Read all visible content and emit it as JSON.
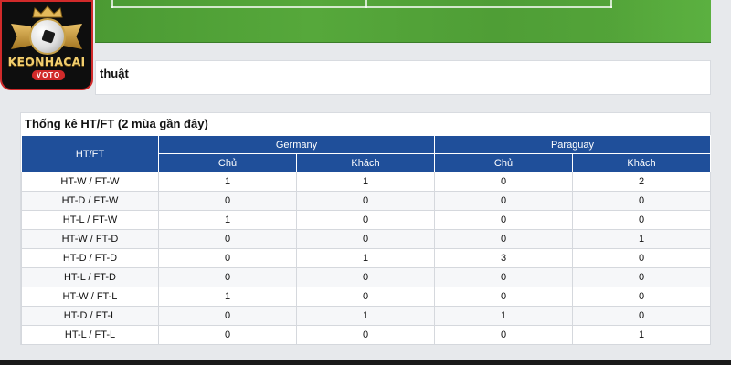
{
  "logo": {
    "name": "KEONHACAI",
    "sub": "VOTO"
  },
  "section_tech": {
    "title": "thuật"
  },
  "htft": {
    "title": "Thống kê HT/FT (2 mùa gần đây)",
    "col_header": "HT/FT",
    "teams": [
      "Germany",
      "Paraguay"
    ],
    "subheaders": [
      "Chủ",
      "Khách",
      "Chủ",
      "Khách"
    ],
    "rows": [
      {
        "label": "HT-W / FT-W",
        "values": [
          "1",
          "1",
          "0",
          "2"
        ]
      },
      {
        "label": "HT-D / FT-W",
        "values": [
          "0",
          "0",
          "0",
          "0"
        ]
      },
      {
        "label": "HT-L / FT-W",
        "values": [
          "1",
          "0",
          "0",
          "0"
        ]
      },
      {
        "label": "HT-W / FT-D",
        "values": [
          "0",
          "0",
          "0",
          "1"
        ]
      },
      {
        "label": "HT-D / FT-D",
        "values": [
          "0",
          "1",
          "3",
          "0"
        ]
      },
      {
        "label": "HT-L / FT-D",
        "values": [
          "0",
          "0",
          "0",
          "0"
        ]
      },
      {
        "label": "HT-W / FT-L",
        "values": [
          "1",
          "0",
          "0",
          "0"
        ]
      },
      {
        "label": "HT-D / FT-L",
        "values": [
          "0",
          "1",
          "1",
          "0"
        ]
      },
      {
        "label": "HT-L / FT-L",
        "values": [
          "0",
          "0",
          "0",
          "1"
        ]
      }
    ]
  },
  "colors": {
    "header_blue": "#1f4f9a",
    "logo_border": "#d12a2a",
    "pitch_green": "#56a83b"
  }
}
